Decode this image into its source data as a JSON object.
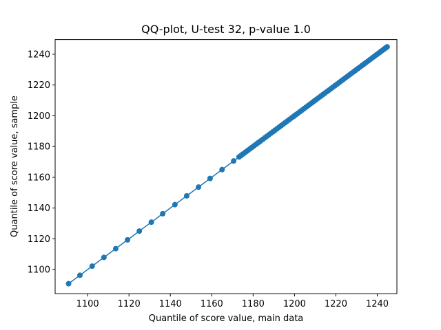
{
  "chart_data": {
    "type": "line",
    "title": "QQ-plot, U-test 32, p-value 1.0",
    "xlabel": "Quantile of score value, main data",
    "ylabel": "Quantile of score value, sample",
    "xlim": [
      1084.3,
      1249.5
    ],
    "ylim": [
      1084.3,
      1249.5
    ],
    "x_ticks": [
      1100,
      1120,
      1140,
      1160,
      1180,
      1200,
      1220,
      1240
    ],
    "y_ticks": [
      1100,
      1120,
      1140,
      1160,
      1180,
      1200,
      1220,
      1240
    ],
    "grid": false,
    "marker": "circle",
    "colors": {
      "series": "#1f77b4",
      "axes": "#000000",
      "background": "#ffffff"
    },
    "series": [
      {
        "x": [
          1090.8,
          1096.3,
          1102.2,
          1107.9,
          1113.6,
          1119.3,
          1125.0,
          1130.8,
          1136.3,
          1142.2,
          1147.9,
          1153.6,
          1159.2,
          1165.0,
          1170.6,
          1173.2,
          1174.0,
          1174.9,
          1175.8,
          1176.7,
          1177.6,
          1178.5,
          1179.5,
          1180.5,
          1181.5,
          1182.5,
          1183.5,
          1184.6,
          1185.6,
          1186.6,
          1187.6,
          1188.6,
          1189.6,
          1190.6,
          1191.6,
          1192.6,
          1193.6,
          1194.6,
          1195.6,
          1196.6,
          1197.6,
          1198.6,
          1199.6,
          1200.6,
          1201.6,
          1202.6,
          1203.6,
          1204.6,
          1205.6,
          1206.6,
          1207.6,
          1208.6,
          1209.6,
          1210.6,
          1211.6,
          1212.6,
          1213.6,
          1214.6,
          1215.6,
          1216.6,
          1217.6,
          1218.6,
          1219.6,
          1220.6,
          1221.6,
          1222.6,
          1223.6,
          1224.6,
          1225.6,
          1226.6,
          1227.6,
          1228.6,
          1229.6,
          1230.6,
          1231.6,
          1232.6,
          1233.6,
          1234.6,
          1235.6,
          1236.6,
          1237.6,
          1238.6,
          1239.6,
          1240.4,
          1241.2,
          1241.9,
          1242.6,
          1243.3,
          1243.9,
          1244.4,
          1244.8
        ],
        "y": [
          1090.8,
          1096.3,
          1102.2,
          1107.9,
          1113.6,
          1119.3,
          1125.0,
          1130.8,
          1136.3,
          1142.2,
          1147.9,
          1153.6,
          1159.2,
          1165.0,
          1170.6,
          1173.2,
          1174.0,
          1174.9,
          1175.8,
          1176.7,
          1177.6,
          1178.5,
          1179.5,
          1180.5,
          1181.5,
          1182.5,
          1183.5,
          1184.6,
          1185.6,
          1186.6,
          1187.6,
          1188.6,
          1189.6,
          1190.6,
          1191.6,
          1192.6,
          1193.6,
          1194.6,
          1195.6,
          1196.6,
          1197.6,
          1198.6,
          1199.6,
          1200.6,
          1201.6,
          1202.6,
          1203.6,
          1204.6,
          1205.6,
          1206.6,
          1207.6,
          1208.6,
          1209.6,
          1210.6,
          1211.6,
          1212.6,
          1213.6,
          1214.6,
          1215.6,
          1216.6,
          1217.6,
          1218.6,
          1219.6,
          1220.6,
          1221.6,
          1222.6,
          1223.6,
          1224.6,
          1225.6,
          1226.6,
          1227.6,
          1228.6,
          1229.6,
          1230.6,
          1231.6,
          1232.6,
          1233.6,
          1234.6,
          1235.6,
          1236.6,
          1237.6,
          1238.6,
          1239.6,
          1240.4,
          1241.2,
          1241.9,
          1242.6,
          1243.3,
          1243.9,
          1244.4,
          1244.8
        ]
      }
    ]
  }
}
